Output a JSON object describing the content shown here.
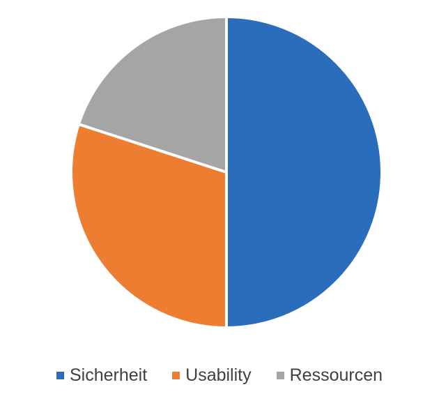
{
  "chart_data": {
    "type": "pie",
    "title": "",
    "legend_position": "bottom",
    "start_angle": "top",
    "direction": "clockwise",
    "categories": [
      "Sicherheit",
      "Usability",
      "Ressourcen"
    ],
    "values": [
      50,
      30,
      20
    ],
    "colors": [
      "#2A6EBB",
      "#ED7D31",
      "#A5A5A5"
    ],
    "series": [
      {
        "values": [
          50,
          30,
          20
        ]
      }
    ]
  }
}
